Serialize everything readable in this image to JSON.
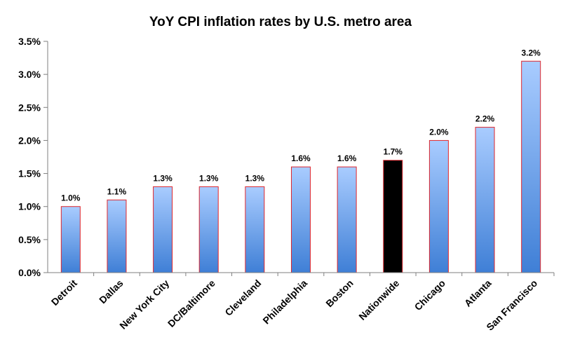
{
  "chart_data": {
    "type": "bar",
    "title": "YoY CPI inflation rates by U.S. metro area",
    "xlabel": "",
    "ylabel": "",
    "ylim": [
      0,
      3.5
    ],
    "yticks": [
      0.0,
      0.5,
      1.0,
      1.5,
      2.0,
      2.5,
      3.0,
      3.5
    ],
    "ytick_labels": [
      "0.0%",
      "0.5%",
      "1.0%",
      "1.5%",
      "2.0%",
      "2.5%",
      "3.0%",
      "3.5%"
    ],
    "grid": false,
    "legend": "none",
    "categories": [
      "Detroit",
      "Dallas",
      "New York City",
      "DC/Baltimore",
      "Cleveland",
      "Philadelphia",
      "Boston",
      "Nationwide",
      "Chicago",
      "Atlanta",
      "San Francisco"
    ],
    "values": [
      1.0,
      1.1,
      1.3,
      1.3,
      1.3,
      1.6,
      1.6,
      1.7,
      2.0,
      2.2,
      3.2
    ],
    "data_labels": [
      "1.0%",
      "1.1%",
      "1.3%",
      "1.3%",
      "1.3%",
      "1.6%",
      "1.6%",
      "1.7%",
      "2.0%",
      "2.2%",
      "3.2%"
    ],
    "highlight_category": "Nationwide",
    "colors": {
      "bar_top": "#a9ccff",
      "bar_bottom": "#3f7fd6",
      "bar_border": "#e0282e",
      "highlight_fill": "#000000",
      "axis": "#7f7f7f"
    }
  }
}
